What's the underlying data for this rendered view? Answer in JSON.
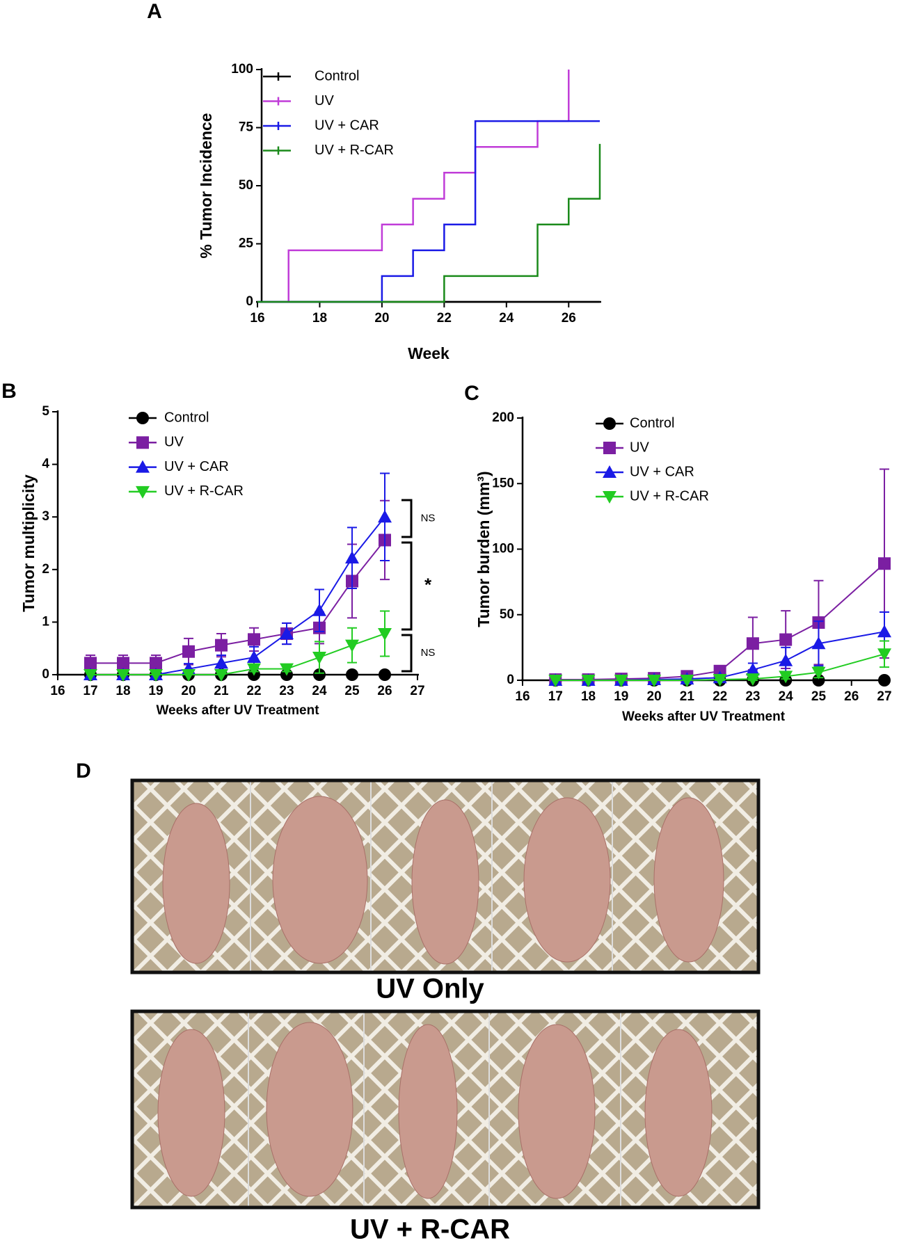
{
  "chart_data": [
    {
      "type": "step",
      "panel": "A",
      "xlabel": "Week",
      "ylabel": "% Tumor Incidence",
      "xlim": [
        16,
        27
      ],
      "xticks": [
        16,
        18,
        20,
        22,
        24,
        26
      ],
      "ylim": [
        0,
        100
      ],
      "yticks": [
        0,
        25,
        50,
        75,
        100
      ],
      "series": [
        {
          "name": "Control",
          "color": "#000000",
          "x": [
            16,
            27
          ],
          "values": [
            0,
            0
          ]
        },
        {
          "name": "UV",
          "color": "#c03cd8",
          "x": [
            16,
            17,
            20,
            21,
            22,
            23,
            25,
            26
          ],
          "values": [
            0,
            22.2,
            33.3,
            44.4,
            55.6,
            66.7,
            77.8,
            100
          ]
        },
        {
          "name": "UV + CAR",
          "color": "#1a1ae6",
          "x": [
            16,
            20,
            21,
            22,
            23,
            27
          ],
          "values": [
            0,
            11.1,
            22.2,
            33.3,
            77.8,
            77.8
          ]
        },
        {
          "name": "UV + R-CAR",
          "color": "#1a8a1a",
          "x": [
            16,
            22,
            25,
            26,
            27
          ],
          "values": [
            0,
            11.1,
            33.3,
            44.4,
            68
          ]
        }
      ]
    },
    {
      "type": "line",
      "panel": "B",
      "xlabel": "Weeks after UV Treatment",
      "ylabel": "Tumor multiplicity",
      "xlim": [
        16,
        27
      ],
      "xticks": [
        16,
        17,
        18,
        19,
        20,
        21,
        22,
        23,
        24,
        25,
        26,
        27
      ],
      "ylim": [
        0,
        5
      ],
      "yticks": [
        0,
        1,
        2,
        3,
        4,
        5
      ],
      "x": [
        17,
        18,
        19,
        20,
        21,
        22,
        23,
        24,
        25,
        26
      ],
      "annotations": [
        "NS",
        "*",
        "NS"
      ],
      "series": [
        {
          "name": "Control",
          "color": "#000000",
          "marker": "circle",
          "values": [
            0,
            0,
            0,
            0,
            0,
            0,
            0,
            0,
            0,
            0
          ],
          "errors": [
            0,
            0,
            0,
            0,
            0,
            0,
            0,
            0,
            0,
            0
          ]
        },
        {
          "name": "UV",
          "color": "#7b1fa2",
          "marker": "square",
          "values": [
            0.22,
            0.22,
            0.22,
            0.44,
            0.56,
            0.67,
            0.78,
            0.89,
            1.78,
            2.56
          ],
          "errors": [
            0.15,
            0.15,
            0.15,
            0.25,
            0.22,
            0.22,
            0.2,
            0.3,
            0.7,
            0.75
          ]
        },
        {
          "name": "UV + CAR",
          "color": "#1a1ae6",
          "marker": "triangle-up",
          "values": [
            0,
            0,
            0,
            0.11,
            0.22,
            0.33,
            0.78,
            1.22,
            2.22,
            3.0
          ],
          "errors": [
            0,
            0,
            0,
            0.1,
            0.15,
            0.2,
            0.2,
            0.4,
            0.58,
            0.83
          ]
        },
        {
          "name": "UV + R-CAR",
          "color": "#22cc22",
          "marker": "triangle-down",
          "values": [
            0,
            0,
            0,
            0,
            0,
            0.11,
            0.11,
            0.33,
            0.56,
            0.78
          ],
          "errors": [
            0,
            0,
            0,
            0,
            0,
            0.05,
            0.05,
            0.3,
            0.33,
            0.43
          ]
        }
      ]
    },
    {
      "type": "line",
      "panel": "C",
      "xlabel": "Weeks after UV Treatment",
      "ylabel": "Tumor burden (mm³)",
      "xlim": [
        16,
        27
      ],
      "xticks": [
        16,
        17,
        18,
        19,
        20,
        21,
        22,
        23,
        24,
        25,
        26,
        27
      ],
      "ylim": [
        0,
        200
      ],
      "yticks": [
        0,
        50,
        100,
        150,
        200
      ],
      "x": [
        17,
        18,
        19,
        20,
        21,
        22,
        23,
        24,
        25,
        27
      ],
      "series": [
        {
          "name": "Control",
          "color": "#000000",
          "marker": "circle",
          "values": [
            0,
            0,
            0,
            0,
            0,
            0,
            0,
            0,
            0,
            0
          ],
          "errors": [
            0,
            0,
            0,
            0,
            0,
            0,
            0,
            0,
            0,
            0
          ]
        },
        {
          "name": "UV",
          "color": "#7b1fa2",
          "marker": "square",
          "values": [
            0.5,
            0.5,
            1,
            1.5,
            3,
            7,
            28,
            31,
            44,
            89
          ],
          "errors": [
            0.5,
            0.5,
            0.5,
            1,
            1.5,
            3,
            20,
            22,
            32,
            72
          ]
        },
        {
          "name": "UV + CAR",
          "color": "#1a1ae6",
          "marker": "triangle-up",
          "values": [
            0,
            0,
            0,
            0.5,
            1,
            2,
            8,
            15,
            28,
            37
          ],
          "errors": [
            0,
            0,
            0,
            0.5,
            0.5,
            1,
            5,
            10,
            17,
            15
          ]
        },
        {
          "name": "UV + R-CAR",
          "color": "#22cc22",
          "marker": "triangle-down",
          "values": [
            0,
            0,
            0,
            0,
            0,
            0.5,
            1,
            3,
            6,
            20
          ],
          "errors": [
            0,
            0,
            0,
            0,
            0,
            0.5,
            1,
            2,
            4,
            10
          ]
        }
      ]
    }
  ],
  "figure_d": {
    "panel": "D",
    "captions": [
      "UV Only",
      "UV + R-CAR"
    ]
  }
}
